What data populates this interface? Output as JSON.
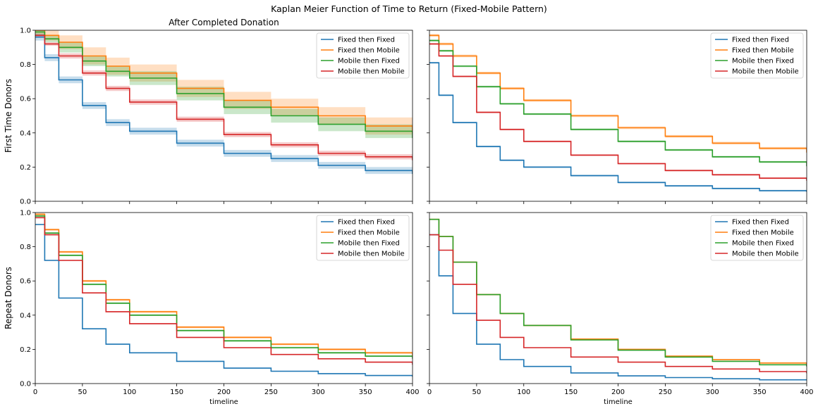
{
  "figure": {
    "suptitle": "Kaplan Meier Function of Time to Return (Fixed-Mobile Pattern)",
    "colors": {
      "Fixed then Fixed": "#1f77b4",
      "Fixed then Mobile": "#ff7f0e",
      "Mobile then Fixed": "#2ca02c",
      "Mobile then Mobile": "#d62728"
    }
  },
  "chart_data": [
    {
      "type": "line",
      "title": "After Completed Donation",
      "ylabel": "First Time Donors",
      "xlabel": "",
      "xlim": [
        0,
        400
      ],
      "ylim": [
        0,
        1
      ],
      "xticks": [
        "0",
        "50",
        "100",
        "150",
        "200",
        "250",
        "300",
        "350",
        "400"
      ],
      "yticks": [
        "0.0",
        "0.2",
        "0.4",
        "0.6",
        "0.8",
        "1.0"
      ],
      "legend": "top-right",
      "x": [
        0,
        10,
        25,
        50,
        75,
        100,
        150,
        200,
        250,
        300,
        350,
        400
      ],
      "series": [
        {
          "name": "Fixed then Fixed",
          "values": [
            0.96,
            0.84,
            0.71,
            0.56,
            0.46,
            0.41,
            0.34,
            0.28,
            0.25,
            0.21,
            0.18,
            0.16
          ],
          "ci": [
            0.02,
            0.02,
            0.02,
            0.02,
            0.02,
            0.02,
            0.02,
            0.02,
            0.02,
            0.02,
            0.02,
            0.02
          ]
        },
        {
          "name": "Fixed then Mobile",
          "values": [
            1.0,
            0.97,
            0.93,
            0.85,
            0.79,
            0.75,
            0.66,
            0.59,
            0.55,
            0.5,
            0.44,
            0.4
          ],
          "ci": [
            0.02,
            0.03,
            0.04,
            0.05,
            0.05,
            0.05,
            0.05,
            0.05,
            0.05,
            0.05,
            0.05,
            0.05
          ]
        },
        {
          "name": "Mobile then Fixed",
          "values": [
            0.99,
            0.95,
            0.9,
            0.82,
            0.76,
            0.72,
            0.63,
            0.55,
            0.5,
            0.45,
            0.41,
            0.37
          ],
          "ci": [
            0.02,
            0.02,
            0.03,
            0.03,
            0.03,
            0.04,
            0.04,
            0.04,
            0.04,
            0.04,
            0.04,
            0.04
          ]
        },
        {
          "name": "Mobile then Mobile",
          "values": [
            0.97,
            0.92,
            0.85,
            0.75,
            0.66,
            0.58,
            0.48,
            0.39,
            0.33,
            0.28,
            0.26,
            0.24
          ],
          "ci": [
            0.01,
            0.01,
            0.015,
            0.015,
            0.015,
            0.015,
            0.015,
            0.015,
            0.015,
            0.015,
            0.015,
            0.015
          ]
        }
      ]
    },
    {
      "type": "line",
      "title": "",
      "ylabel": "",
      "xlabel": "",
      "xlim": [
        0,
        400
      ],
      "ylim": [
        0,
        1
      ],
      "xticks": [
        "0",
        "50",
        "100",
        "150",
        "200",
        "250",
        "300",
        "350",
        "400"
      ],
      "yticks": [],
      "legend": "top-right",
      "x": [
        0,
        10,
        25,
        50,
        75,
        100,
        150,
        200,
        250,
        300,
        350,
        400
      ],
      "series": [
        {
          "name": "Fixed then Fixed",
          "values": [
            0.81,
            0.62,
            0.46,
            0.32,
            0.24,
            0.2,
            0.15,
            0.11,
            0.09,
            0.075,
            0.062,
            0.055
          ],
          "ci": [
            0.005,
            0.005,
            0.005,
            0.005,
            0.005,
            0.005,
            0.005,
            0.005,
            0.005,
            0.005,
            0.005,
            0.005
          ]
        },
        {
          "name": "Fixed then Mobile",
          "values": [
            0.97,
            0.92,
            0.85,
            0.75,
            0.66,
            0.59,
            0.5,
            0.43,
            0.38,
            0.34,
            0.31,
            0.285
          ],
          "ci": [
            0.008,
            0.008,
            0.008,
            0.008,
            0.008,
            0.008,
            0.008,
            0.008,
            0.008,
            0.008,
            0.008,
            0.008
          ]
        },
        {
          "name": "Mobile then Fixed",
          "values": [
            0.94,
            0.88,
            0.79,
            0.67,
            0.57,
            0.51,
            0.42,
            0.35,
            0.3,
            0.26,
            0.23,
            0.205
          ],
          "ci": [
            0.006,
            0.006,
            0.006,
            0.006,
            0.006,
            0.006,
            0.006,
            0.006,
            0.006,
            0.006,
            0.006,
            0.006
          ]
        },
        {
          "name": "Mobile then Mobile",
          "values": [
            0.92,
            0.85,
            0.73,
            0.52,
            0.42,
            0.35,
            0.27,
            0.22,
            0.18,
            0.155,
            0.135,
            0.12
          ],
          "ci": [
            0.005,
            0.005,
            0.005,
            0.005,
            0.005,
            0.005,
            0.005,
            0.005,
            0.005,
            0.005,
            0.005,
            0.005
          ]
        }
      ]
    },
    {
      "type": "line",
      "title": "",
      "ylabel": "Repeat Donors",
      "xlabel": "timeline",
      "xlim": [
        0,
        400
      ],
      "ylim": [
        0,
        1
      ],
      "xticks": [
        "0",
        "50",
        "100",
        "150",
        "200",
        "250",
        "300",
        "350",
        "400"
      ],
      "yticks": [
        "0.0",
        "0.2",
        "0.4",
        "0.6",
        "0.8",
        "1.0"
      ],
      "legend": "top-right",
      "x": [
        0,
        10,
        25,
        50,
        75,
        100,
        150,
        200,
        250,
        300,
        350,
        400
      ],
      "series": [
        {
          "name": "Fixed then Fixed",
          "values": [
            0.93,
            0.72,
            0.5,
            0.32,
            0.23,
            0.18,
            0.13,
            0.09,
            0.072,
            0.058,
            0.047,
            0.04
          ],
          "ci": [
            0.003,
            0.003,
            0.003,
            0.003,
            0.003,
            0.003,
            0.003,
            0.003,
            0.003,
            0.003,
            0.003,
            0.003
          ]
        },
        {
          "name": "Fixed then Mobile",
          "values": [
            0.99,
            0.9,
            0.77,
            0.6,
            0.49,
            0.42,
            0.33,
            0.27,
            0.23,
            0.2,
            0.18,
            0.16
          ],
          "ci": [
            0.006,
            0.006,
            0.006,
            0.006,
            0.006,
            0.006,
            0.006,
            0.006,
            0.006,
            0.006,
            0.006,
            0.006
          ]
        },
        {
          "name": "Mobile then Fixed",
          "values": [
            0.98,
            0.88,
            0.75,
            0.58,
            0.47,
            0.4,
            0.31,
            0.25,
            0.21,
            0.18,
            0.16,
            0.145
          ],
          "ci": [
            0.005,
            0.005,
            0.005,
            0.005,
            0.005,
            0.005,
            0.005,
            0.005,
            0.005,
            0.005,
            0.005,
            0.005
          ]
        },
        {
          "name": "Mobile then Mobile",
          "values": [
            0.97,
            0.87,
            0.72,
            0.53,
            0.42,
            0.35,
            0.27,
            0.21,
            0.17,
            0.145,
            0.125,
            0.11
          ],
          "ci": [
            0.003,
            0.003,
            0.003,
            0.003,
            0.003,
            0.003,
            0.003,
            0.003,
            0.003,
            0.003,
            0.003,
            0.003
          ]
        }
      ]
    },
    {
      "type": "line",
      "title": "",
      "ylabel": "",
      "xlabel": "timeline",
      "xlim": [
        0,
        400
      ],
      "ylim": [
        0,
        1
      ],
      "xticks": [
        "0",
        "50",
        "100",
        "150",
        "200",
        "250",
        "300",
        "350",
        "400"
      ],
      "yticks": [],
      "legend": "top-right",
      "x": [
        0,
        10,
        25,
        50,
        75,
        100,
        150,
        200,
        250,
        300,
        350,
        400
      ],
      "series": [
        {
          "name": "Fixed then Fixed",
          "values": [
            0.87,
            0.63,
            0.41,
            0.23,
            0.14,
            0.1,
            0.062,
            0.045,
            0.035,
            0.028,
            0.022,
            0.018
          ],
          "ci": [
            0.002,
            0.002,
            0.002,
            0.002,
            0.002,
            0.002,
            0.002,
            0.002,
            0.002,
            0.002,
            0.002,
            0.002
          ]
        },
        {
          "name": "Fixed then Mobile",
          "values": [
            0.96,
            0.86,
            0.71,
            0.52,
            0.41,
            0.34,
            0.26,
            0.2,
            0.16,
            0.14,
            0.12,
            0.105
          ],
          "ci": [
            0.004,
            0.004,
            0.004,
            0.004,
            0.004,
            0.004,
            0.004,
            0.004,
            0.004,
            0.004,
            0.004,
            0.004
          ]
        },
        {
          "name": "Mobile then Fixed",
          "values": [
            0.96,
            0.86,
            0.71,
            0.52,
            0.41,
            0.34,
            0.255,
            0.195,
            0.155,
            0.13,
            0.11,
            0.1
          ],
          "ci": [
            0.003,
            0.003,
            0.003,
            0.003,
            0.003,
            0.003,
            0.003,
            0.003,
            0.003,
            0.003,
            0.003,
            0.003
          ]
        },
        {
          "name": "Mobile then Mobile",
          "values": [
            0.87,
            0.78,
            0.58,
            0.37,
            0.27,
            0.21,
            0.155,
            0.125,
            0.1,
            0.085,
            0.07,
            0.06
          ],
          "ci": [
            0.002,
            0.002,
            0.002,
            0.002,
            0.002,
            0.002,
            0.002,
            0.002,
            0.002,
            0.002,
            0.002,
            0.002
          ]
        }
      ]
    }
  ]
}
